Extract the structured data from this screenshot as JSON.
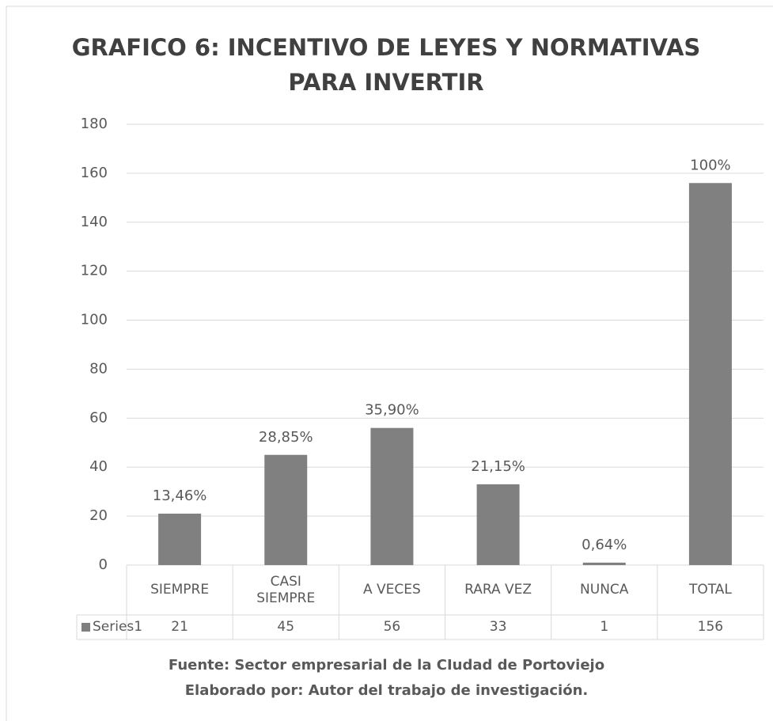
{
  "chart_data": {
    "type": "bar",
    "title_lines": [
      "GRAFICO 6: INCENTIVO DE LEYES Y NORMATIVAS",
      "PARA INVERTIR"
    ],
    "categories": [
      "SIEMPRE",
      "CASI SIEMPRE",
      "A VECES",
      "RARA VEZ",
      "NUNCA",
      "TOTAL"
    ],
    "series": [
      {
        "name": "Series1",
        "color": "#808080",
        "values": [
          21,
          45,
          56,
          33,
          1,
          156
        ]
      }
    ],
    "data_labels": [
      "13,46%",
      "28,85%",
      "35,90%",
      "21,15%",
      "0,64%",
      "100%"
    ],
    "ylim": [
      0,
      180
    ],
    "yticks": [
      0,
      20,
      40,
      60,
      80,
      100,
      120,
      140,
      160,
      180
    ],
    "grid": true,
    "notes": [
      "Fuente: Sector empresarial de la CIudad de Portoviejo",
      "Elaborado por: Autor del trabajo de investigación."
    ]
  }
}
